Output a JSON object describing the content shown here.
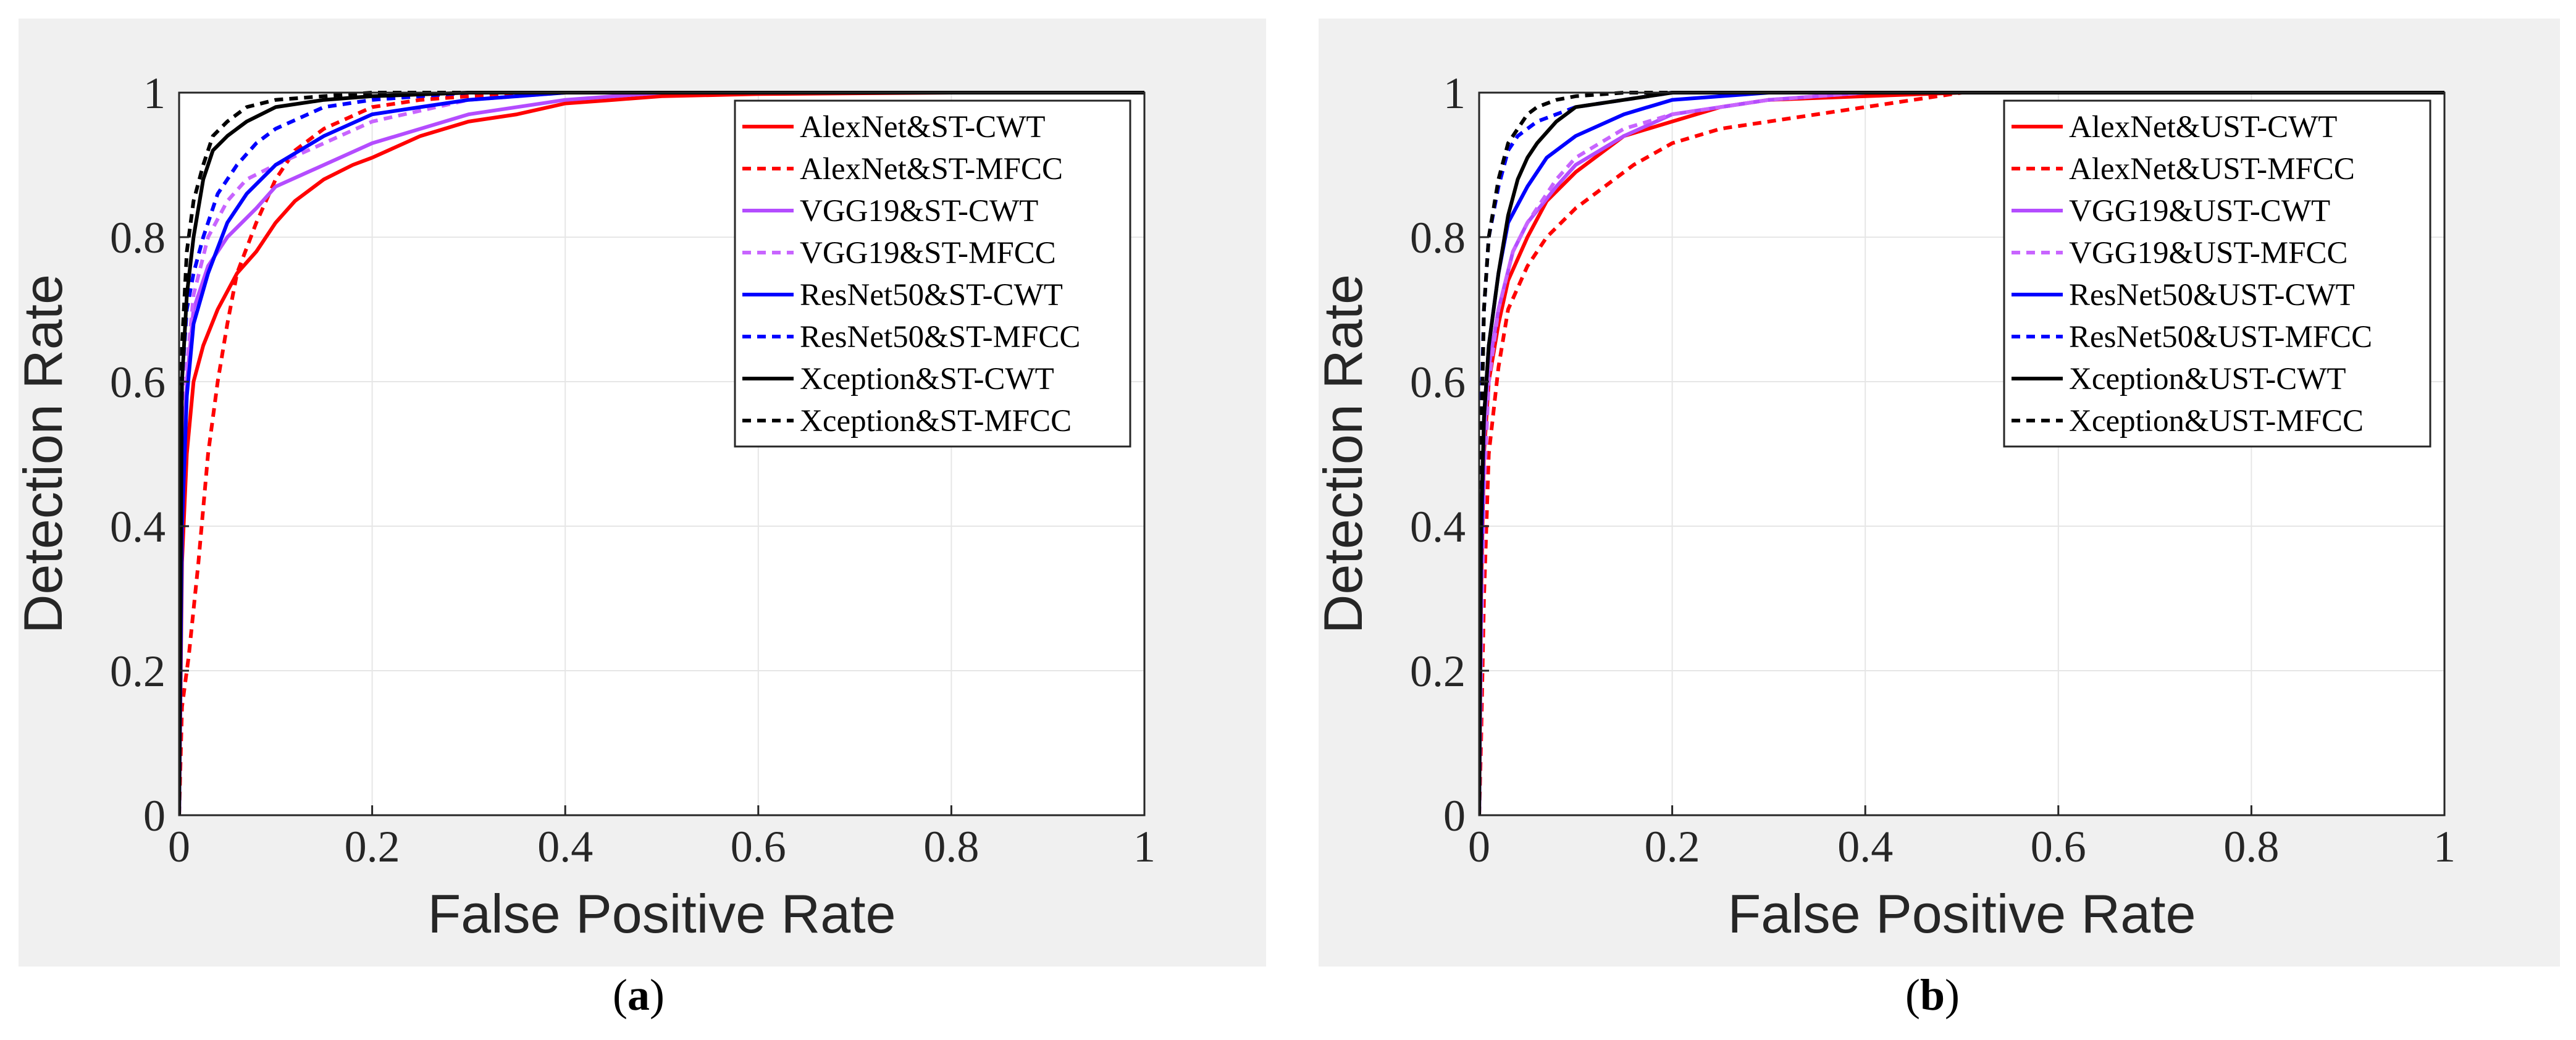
{
  "chart_data": [
    {
      "type": "line",
      "caption": {
        "open": "(",
        "letter": "a",
        "close": ")"
      },
      "xlabel": "False Positive Rate",
      "ylabel": "Detection Rate",
      "xlim": [
        0,
        1
      ],
      "ylim": [
        0,
        1
      ],
      "xticks": [
        "0",
        "0.2",
        "0.4",
        "0.6",
        "0.8",
        "1"
      ],
      "yticks": [
        "0",
        "0.2",
        "0.4",
        "0.6",
        "0.8",
        "1"
      ],
      "grid": true,
      "legend_position": "top-right",
      "series": [
        {
          "name": "AlexNet&ST-CWT",
          "color": "#ff0000",
          "dash": "solid",
          "x": [
            0,
            0.003,
            0.008,
            0.015,
            0.025,
            0.04,
            0.06,
            0.08,
            0.1,
            0.12,
            0.15,
            0.18,
            0.2,
            0.25,
            0.3,
            0.35,
            0.4,
            0.45,
            0.5,
            0.6,
            0.8,
            1
          ],
          "y": [
            0,
            0.35,
            0.5,
            0.6,
            0.65,
            0.7,
            0.75,
            0.78,
            0.82,
            0.85,
            0.88,
            0.9,
            0.91,
            0.94,
            0.96,
            0.97,
            0.985,
            0.99,
            0.995,
            0.998,
            1,
            1
          ]
        },
        {
          "name": "AlexNet&ST-MFCC",
          "color": "#ff0000",
          "dash": "dash",
          "x": [
            0,
            0.003,
            0.01,
            0.02,
            0.03,
            0.04,
            0.05,
            0.06,
            0.08,
            0.1,
            0.12,
            0.15,
            0.2,
            0.25,
            0.3,
            0.4,
            1
          ],
          "y": [
            0,
            0.15,
            0.22,
            0.35,
            0.5,
            0.6,
            0.68,
            0.75,
            0.82,
            0.88,
            0.92,
            0.95,
            0.98,
            0.99,
            0.995,
            1,
            1
          ]
        },
        {
          "name": "VGG19&ST-CWT",
          "color": "#b44cff",
          "dash": "solid",
          "x": [
            0,
            0.003,
            0.008,
            0.015,
            0.03,
            0.05,
            0.08,
            0.1,
            0.15,
            0.2,
            0.3,
            0.4,
            0.5,
            1
          ],
          "y": [
            0,
            0.45,
            0.6,
            0.7,
            0.76,
            0.8,
            0.84,
            0.87,
            0.9,
            0.93,
            0.97,
            0.99,
            1,
            1
          ]
        },
        {
          "name": "VGG19&ST-MFCC",
          "color": "#c864ff",
          "dash": "dash",
          "x": [
            0,
            0.003,
            0.008,
            0.015,
            0.03,
            0.05,
            0.07,
            0.1,
            0.15,
            0.2,
            0.3,
            0.4,
            1
          ],
          "y": [
            0,
            0.5,
            0.62,
            0.72,
            0.8,
            0.85,
            0.88,
            0.9,
            0.93,
            0.96,
            0.99,
            1,
            1
          ]
        },
        {
          "name": "ResNet50&ST-CWT",
          "color": "#0000ff",
          "dash": "solid",
          "x": [
            0,
            0.003,
            0.008,
            0.015,
            0.03,
            0.05,
            0.07,
            0.1,
            0.15,
            0.2,
            0.25,
            0.3,
            0.4,
            1
          ],
          "y": [
            0,
            0.4,
            0.58,
            0.68,
            0.75,
            0.82,
            0.86,
            0.9,
            0.94,
            0.97,
            0.98,
            0.99,
            1,
            1
          ]
        },
        {
          "name": "ResNet50&ST-MFCC",
          "color": "#0000ff",
          "dash": "dash",
          "x": [
            0,
            0.003,
            0.008,
            0.015,
            0.025,
            0.04,
            0.06,
            0.08,
            0.1,
            0.15,
            0.2,
            0.3,
            1
          ],
          "y": [
            0,
            0.6,
            0.7,
            0.75,
            0.8,
            0.86,
            0.9,
            0.93,
            0.95,
            0.98,
            0.99,
            1,
            1
          ]
        },
        {
          "name": "Xception&ST-CWT",
          "color": "#000000",
          "dash": "solid",
          "x": [
            0,
            0.003,
            0.008,
            0.015,
            0.025,
            0.035,
            0.05,
            0.07,
            0.1,
            0.15,
            0.2,
            0.3,
            1
          ],
          "y": [
            0,
            0.6,
            0.72,
            0.8,
            0.88,
            0.92,
            0.94,
            0.96,
            0.98,
            0.99,
            0.995,
            1,
            1
          ]
        },
        {
          "name": "Xception&ST-MFCC",
          "color": "#000000",
          "dash": "dash",
          "x": [
            0,
            0.003,
            0.008,
            0.015,
            0.025,
            0.035,
            0.05,
            0.07,
            0.1,
            0.15,
            0.2,
            1
          ],
          "y": [
            0,
            0.65,
            0.78,
            0.85,
            0.9,
            0.94,
            0.96,
            0.98,
            0.99,
            0.995,
            1,
            1
          ]
        }
      ]
    },
    {
      "type": "line",
      "caption": {
        "open": "(",
        "letter": "b",
        "close": ")"
      },
      "xlabel": "False Positive Rate",
      "ylabel": "Detection Rate",
      "xlim": [
        0,
        1
      ],
      "ylim": [
        0,
        1
      ],
      "xticks": [
        "0",
        "0.2",
        "0.4",
        "0.6",
        "0.8",
        "1"
      ],
      "yticks": [
        "0",
        "0.2",
        "0.4",
        "0.6",
        "0.8",
        "1"
      ],
      "grid": true,
      "legend_position": "top-right",
      "series": [
        {
          "name": "AlexNet&UST-CWT",
          "color": "#ff0000",
          "dash": "solid",
          "x": [
            0,
            0.002,
            0.005,
            0.01,
            0.02,
            0.03,
            0.05,
            0.07,
            0.1,
            0.15,
            0.2,
            0.25,
            0.3,
            0.4,
            0.5,
            1
          ],
          "y": [
            0,
            0.3,
            0.5,
            0.6,
            0.68,
            0.74,
            0.8,
            0.85,
            0.89,
            0.94,
            0.96,
            0.98,
            0.99,
            0.995,
            1,
            1
          ]
        },
        {
          "name": "AlexNet&UST-MFCC",
          "color": "#ff0000",
          "dash": "dash",
          "x": [
            0,
            0.002,
            0.005,
            0.01,
            0.02,
            0.03,
            0.05,
            0.07,
            0.1,
            0.13,
            0.16,
            0.2,
            0.25,
            0.3,
            0.35,
            0.4,
            0.45,
            0.5,
            1
          ],
          "y": [
            0,
            0.1,
            0.3,
            0.5,
            0.62,
            0.7,
            0.76,
            0.8,
            0.84,
            0.87,
            0.9,
            0.93,
            0.95,
            0.96,
            0.97,
            0.98,
            0.99,
            1,
            1
          ]
        },
        {
          "name": "VGG19&UST-CWT",
          "color": "#b44cff",
          "dash": "solid",
          "x": [
            0,
            0.002,
            0.005,
            0.01,
            0.02,
            0.035,
            0.05,
            0.08,
            0.1,
            0.15,
            0.2,
            0.3,
            0.4,
            1
          ],
          "y": [
            0,
            0.35,
            0.52,
            0.62,
            0.7,
            0.78,
            0.82,
            0.87,
            0.9,
            0.94,
            0.97,
            0.99,
            1,
            1
          ]
        },
        {
          "name": "VGG19&UST-MFCC",
          "color": "#c864ff",
          "dash": "dash",
          "x": [
            0,
            0.002,
            0.005,
            0.01,
            0.02,
            0.035,
            0.05,
            0.08,
            0.1,
            0.15,
            0.2,
            0.3,
            0.4,
            1
          ],
          "y": [
            0,
            0.2,
            0.45,
            0.6,
            0.7,
            0.78,
            0.82,
            0.88,
            0.91,
            0.95,
            0.97,
            0.99,
            1,
            1
          ]
        },
        {
          "name": "ResNet50&UST-CWT",
          "color": "#0000ff",
          "dash": "solid",
          "x": [
            0,
            0.002,
            0.005,
            0.01,
            0.02,
            0.03,
            0.05,
            0.07,
            0.1,
            0.15,
            0.2,
            0.3,
            1
          ],
          "y": [
            0,
            0.35,
            0.55,
            0.65,
            0.75,
            0.82,
            0.87,
            0.91,
            0.94,
            0.97,
            0.99,
            1,
            1
          ]
        },
        {
          "name": "ResNet50&UST-MFCC",
          "color": "#0000ff",
          "dash": "dash",
          "x": [
            0,
            0.002,
            0.005,
            0.01,
            0.02,
            0.03,
            0.04,
            0.06,
            0.08,
            0.1,
            0.15,
            0.2,
            1
          ],
          "y": [
            0,
            0.55,
            0.7,
            0.8,
            0.87,
            0.92,
            0.94,
            0.96,
            0.97,
            0.98,
            0.99,
            1,
            1
          ]
        },
        {
          "name": "Xception&UST-CWT",
          "color": "#000000",
          "dash": "solid",
          "x": [
            0,
            0.002,
            0.005,
            0.01,
            0.02,
            0.03,
            0.04,
            0.05,
            0.06,
            0.08,
            0.1,
            0.15,
            0.2,
            1
          ],
          "y": [
            0,
            0.4,
            0.55,
            0.65,
            0.75,
            0.83,
            0.88,
            0.91,
            0.93,
            0.96,
            0.98,
            0.99,
            1,
            1
          ]
        },
        {
          "name": "Xception&UST-MFCC",
          "color": "#000000",
          "dash": "dash",
          "x": [
            0,
            0.002,
            0.005,
            0.01,
            0.02,
            0.03,
            0.04,
            0.05,
            0.06,
            0.08,
            0.1,
            0.15,
            1
          ],
          "y": [
            0,
            0.5,
            0.7,
            0.8,
            0.88,
            0.93,
            0.95,
            0.97,
            0.98,
            0.99,
            0.995,
            1,
            1
          ]
        }
      ]
    }
  ]
}
